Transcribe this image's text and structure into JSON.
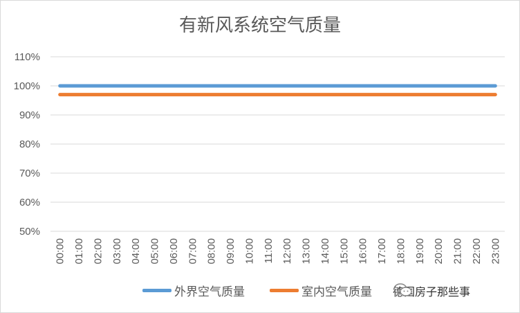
{
  "chart_data": {
    "type": "line",
    "title": "有新风系统空气质量",
    "categories": [
      "00:00",
      "01:00",
      "02:00",
      "03:00",
      "04:00",
      "05:00",
      "06:00",
      "07:00",
      "08:00",
      "09:00",
      "10:00",
      "11:00",
      "12:00",
      "13:00",
      "14:00",
      "15:00",
      "16:00",
      "17:00",
      "18:00",
      "19:00",
      "20:00",
      "21:00",
      "22:00",
      "23:00"
    ],
    "ylim": [
      0.5,
      1.1
    ],
    "yticks": [
      "50%",
      "60%",
      "70%",
      "80%",
      "90%",
      "100%",
      "110%"
    ],
    "grid": true,
    "legend_position": "bottom",
    "series": [
      {
        "name": "外界空气质量",
        "color": "#5b9bd5",
        "values": [
          1,
          1,
          1,
          1,
          1,
          1,
          1,
          1,
          1,
          1,
          1,
          1,
          1,
          1,
          1,
          1,
          1,
          1,
          1,
          1,
          1,
          1,
          1,
          1
        ]
      },
      {
        "name": "室内空气质量",
        "color": "#ed7d31",
        "values": [
          0.97,
          0.97,
          0.97,
          0.97,
          0.97,
          0.97,
          0.97,
          0.97,
          0.97,
          0.97,
          0.97,
          0.97,
          0.97,
          0.97,
          0.97,
          0.97,
          0.97,
          0.97,
          0.97,
          0.97,
          0.97,
          0.97,
          0.97,
          0.97
        ]
      }
    ]
  },
  "watermark": {
    "text": "德国房子那些事",
    "icon": "wechat-icon"
  }
}
